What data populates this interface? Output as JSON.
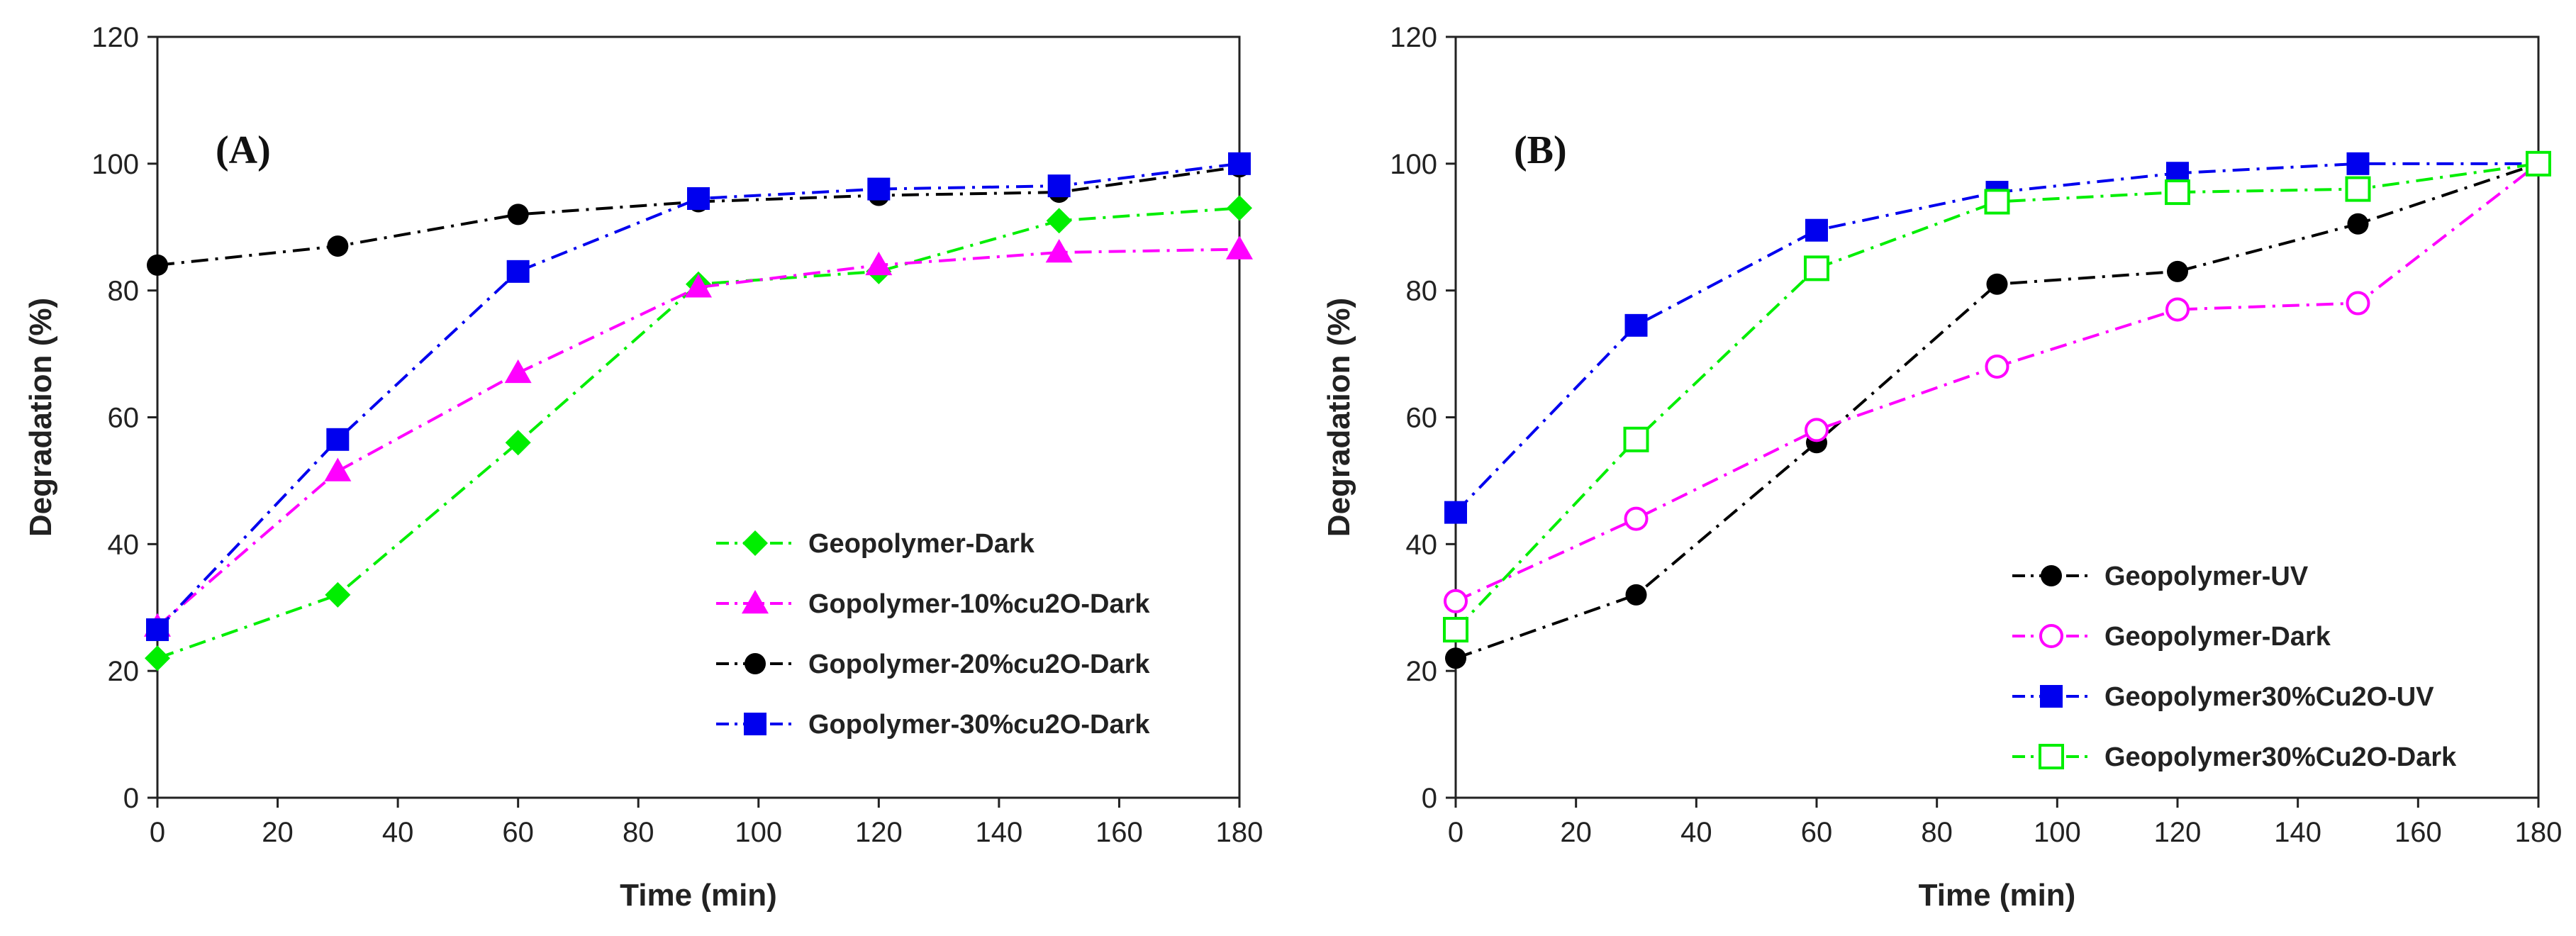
{
  "chart_data": [
    {
      "type": "line",
      "panel_label": "(A)",
      "xlabel": "Time (min)",
      "ylabel": "Degradation (%)",
      "xlim": [
        0,
        180
      ],
      "ylim": [
        0,
        120
      ],
      "xticks": [
        "0",
        "20",
        "40",
        "60",
        "80",
        "100",
        "120",
        "140",
        "160",
        "180"
      ],
      "yticks": [
        "0",
        "20",
        "40",
        "60",
        "80",
        "100",
        "120"
      ],
      "legend_position": "lower-right",
      "x": [
        0,
        30,
        60,
        90,
        120,
        150,
        180
      ],
      "series": [
        {
          "name": "Geopolymer-Dark",
          "color": "#00ee00",
          "marker": "diamond",
          "filled": true,
          "values": [
            22,
            32,
            56,
            81,
            83,
            91,
            93
          ]
        },
        {
          "name": "Gopolymer-10%cu2O-Dark",
          "color": "#ff00ff",
          "marker": "triangle",
          "filled": true,
          "values": [
            27,
            51.5,
            67,
            80.5,
            84,
            86,
            86.5
          ]
        },
        {
          "name": "Gopolymer-20%cu2O-Dark",
          "color": "#000000",
          "marker": "circle",
          "filled": true,
          "values": [
            84,
            87,
            92,
            94,
            95,
            95.5,
            99.5
          ]
        },
        {
          "name": "Gopolymer-30%cu2O-Dark",
          "color": "#0000ee",
          "marker": "square",
          "filled": true,
          "values": [
            26.5,
            56.5,
            83,
            94.5,
            96,
            96.5,
            100
          ]
        }
      ]
    },
    {
      "type": "line",
      "panel_label": "(B)",
      "xlabel": "Time (min)",
      "ylabel": "Degradation (%)",
      "xlim": [
        0,
        180
      ],
      "ylim": [
        0,
        120
      ],
      "xticks": [
        "0",
        "20",
        "40",
        "60",
        "80",
        "100",
        "120",
        "140",
        "160",
        "180"
      ],
      "yticks": [
        "0",
        "20",
        "40",
        "60",
        "80",
        "100",
        "120"
      ],
      "legend_position": "lower-right",
      "x": [
        0,
        30,
        60,
        90,
        120,
        150,
        180
      ],
      "series": [
        {
          "name": "Geopolymer-UV",
          "color": "#000000",
          "marker": "circle",
          "filled": true,
          "values": [
            22,
            32,
            56,
            81,
            83,
            90.5,
            100
          ]
        },
        {
          "name": "Geopolymer-Dark",
          "color": "#ff00ff",
          "marker": "circle",
          "filled": false,
          "values": [
            31,
            44,
            58,
            68,
            77,
            78,
            100
          ]
        },
        {
          "name": "Geopolymer30%Cu2O-UV",
          "color": "#0000ee",
          "marker": "square",
          "filled": true,
          "values": [
            45,
            74.5,
            89.5,
            95.5,
            98.5,
            100,
            100
          ]
        },
        {
          "name": "Geopolymer30%Cu2O-Dark",
          "color": "#00ee00",
          "marker": "square",
          "filled": false,
          "values": [
            26.5,
            56.5,
            83.5,
            94,
            95.5,
            96,
            100
          ]
        }
      ]
    }
  ]
}
